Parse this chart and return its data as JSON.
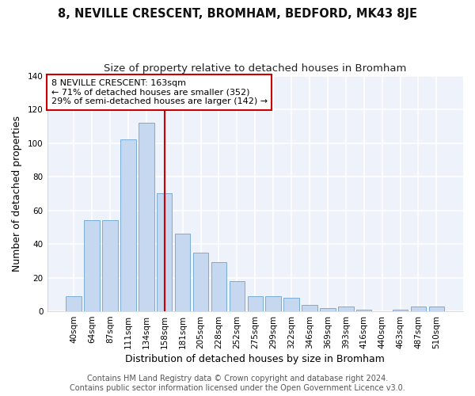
{
  "title": "8, NEVILLE CRESCENT, BROMHAM, BEDFORD, MK43 8JE",
  "subtitle": "Size of property relative to detached houses in Bromham",
  "xlabel": "Distribution of detached houses by size in Bromham",
  "ylabel": "Number of detached properties",
  "categories": [
    "40sqm",
    "64sqm",
    "87sqm",
    "111sqm",
    "134sqm",
    "158sqm",
    "181sqm",
    "205sqm",
    "228sqm",
    "252sqm",
    "275sqm",
    "299sqm",
    "322sqm",
    "346sqm",
    "369sqm",
    "393sqm",
    "416sqm",
    "440sqm",
    "463sqm",
    "487sqm",
    "510sqm"
  ],
  "values": [
    9,
    54,
    54,
    102,
    112,
    70,
    46,
    35,
    29,
    18,
    9,
    9,
    8,
    4,
    2,
    3,
    1,
    0,
    1,
    3,
    3
  ],
  "bar_color": "#c5d8f0",
  "bar_edge_color": "#7aadd4",
  "vline_x": 5,
  "vline_color": "#cc0000",
  "annotation_text": "8 NEVILLE CRESCENT: 163sqm\n← 71% of detached houses are smaller (352)\n29% of semi-detached houses are larger (142) →",
  "annotation_box_color": "#ffffff",
  "annotation_box_edge": "#cc0000",
  "ylim": [
    0,
    140
  ],
  "yticks": [
    0,
    20,
    40,
    60,
    80,
    100,
    120,
    140
  ],
  "footer": "Contains HM Land Registry data © Crown copyright and database right 2024.\nContains public sector information licensed under the Open Government Licence v3.0.",
  "bg_color": "#ffffff",
  "plot_bg_color": "#eef2fb",
  "grid_color": "#ffffff",
  "title_fontsize": 10.5,
  "subtitle_fontsize": 9.5,
  "axis_label_fontsize": 9,
  "tick_fontsize": 7.5,
  "footer_fontsize": 7,
  "annotation_fontsize": 8
}
